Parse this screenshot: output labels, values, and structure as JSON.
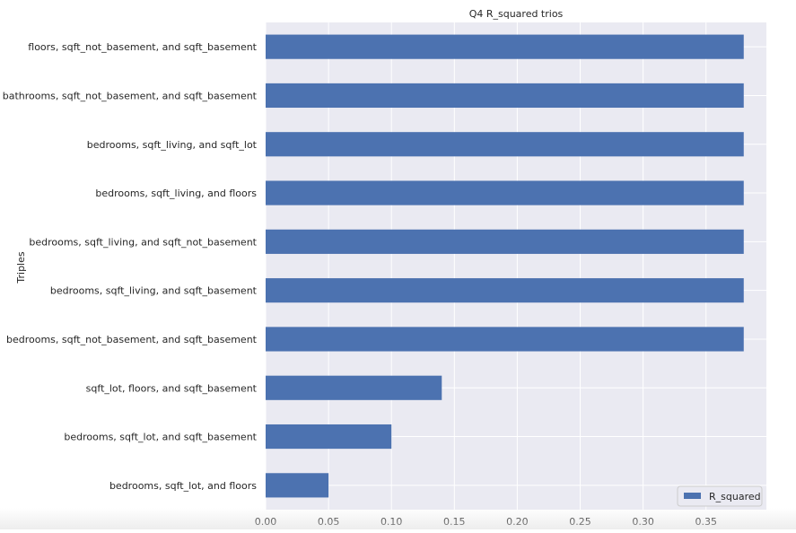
{
  "chart_data": {
    "type": "bar",
    "orientation": "horizontal",
    "title": "Q4 R_squared trios",
    "xlabel": "",
    "ylabel": "Triples",
    "xlim": [
      0.0,
      0.398
    ],
    "xticks": [
      "0.00",
      "0.05",
      "0.10",
      "0.15",
      "0.20",
      "0.25",
      "0.30",
      "0.35"
    ],
    "grid": true,
    "legend_position": "bottom-right",
    "categories": [
      "floors, sqft_not_basement, and sqft_basement",
      "bathrooms, sqft_not_basement, and sqft_basement",
      "bedrooms, sqft_living, and sqft_lot",
      "bedrooms, sqft_living, and floors",
      "bedrooms, sqft_living, and sqft_not_basement",
      "bedrooms, sqft_living, and sqft_basement",
      "bedrooms, sqft_not_basement, and sqft_basement",
      "sqft_lot, floors, and sqft_basement",
      "bedrooms, sqft_lot, and sqft_basement",
      "bedrooms, sqft_lot, and floors"
    ],
    "series": [
      {
        "name": "R_squared",
        "color": "#4c72b0",
        "values": [
          0.38,
          0.38,
          0.38,
          0.38,
          0.38,
          0.38,
          0.38,
          0.14,
          0.1,
          0.05
        ]
      }
    ],
    "colors": {
      "plot_bg": "#eaeaf2",
      "grid": "#ffffff",
      "bar": "#4c72b0"
    }
  }
}
